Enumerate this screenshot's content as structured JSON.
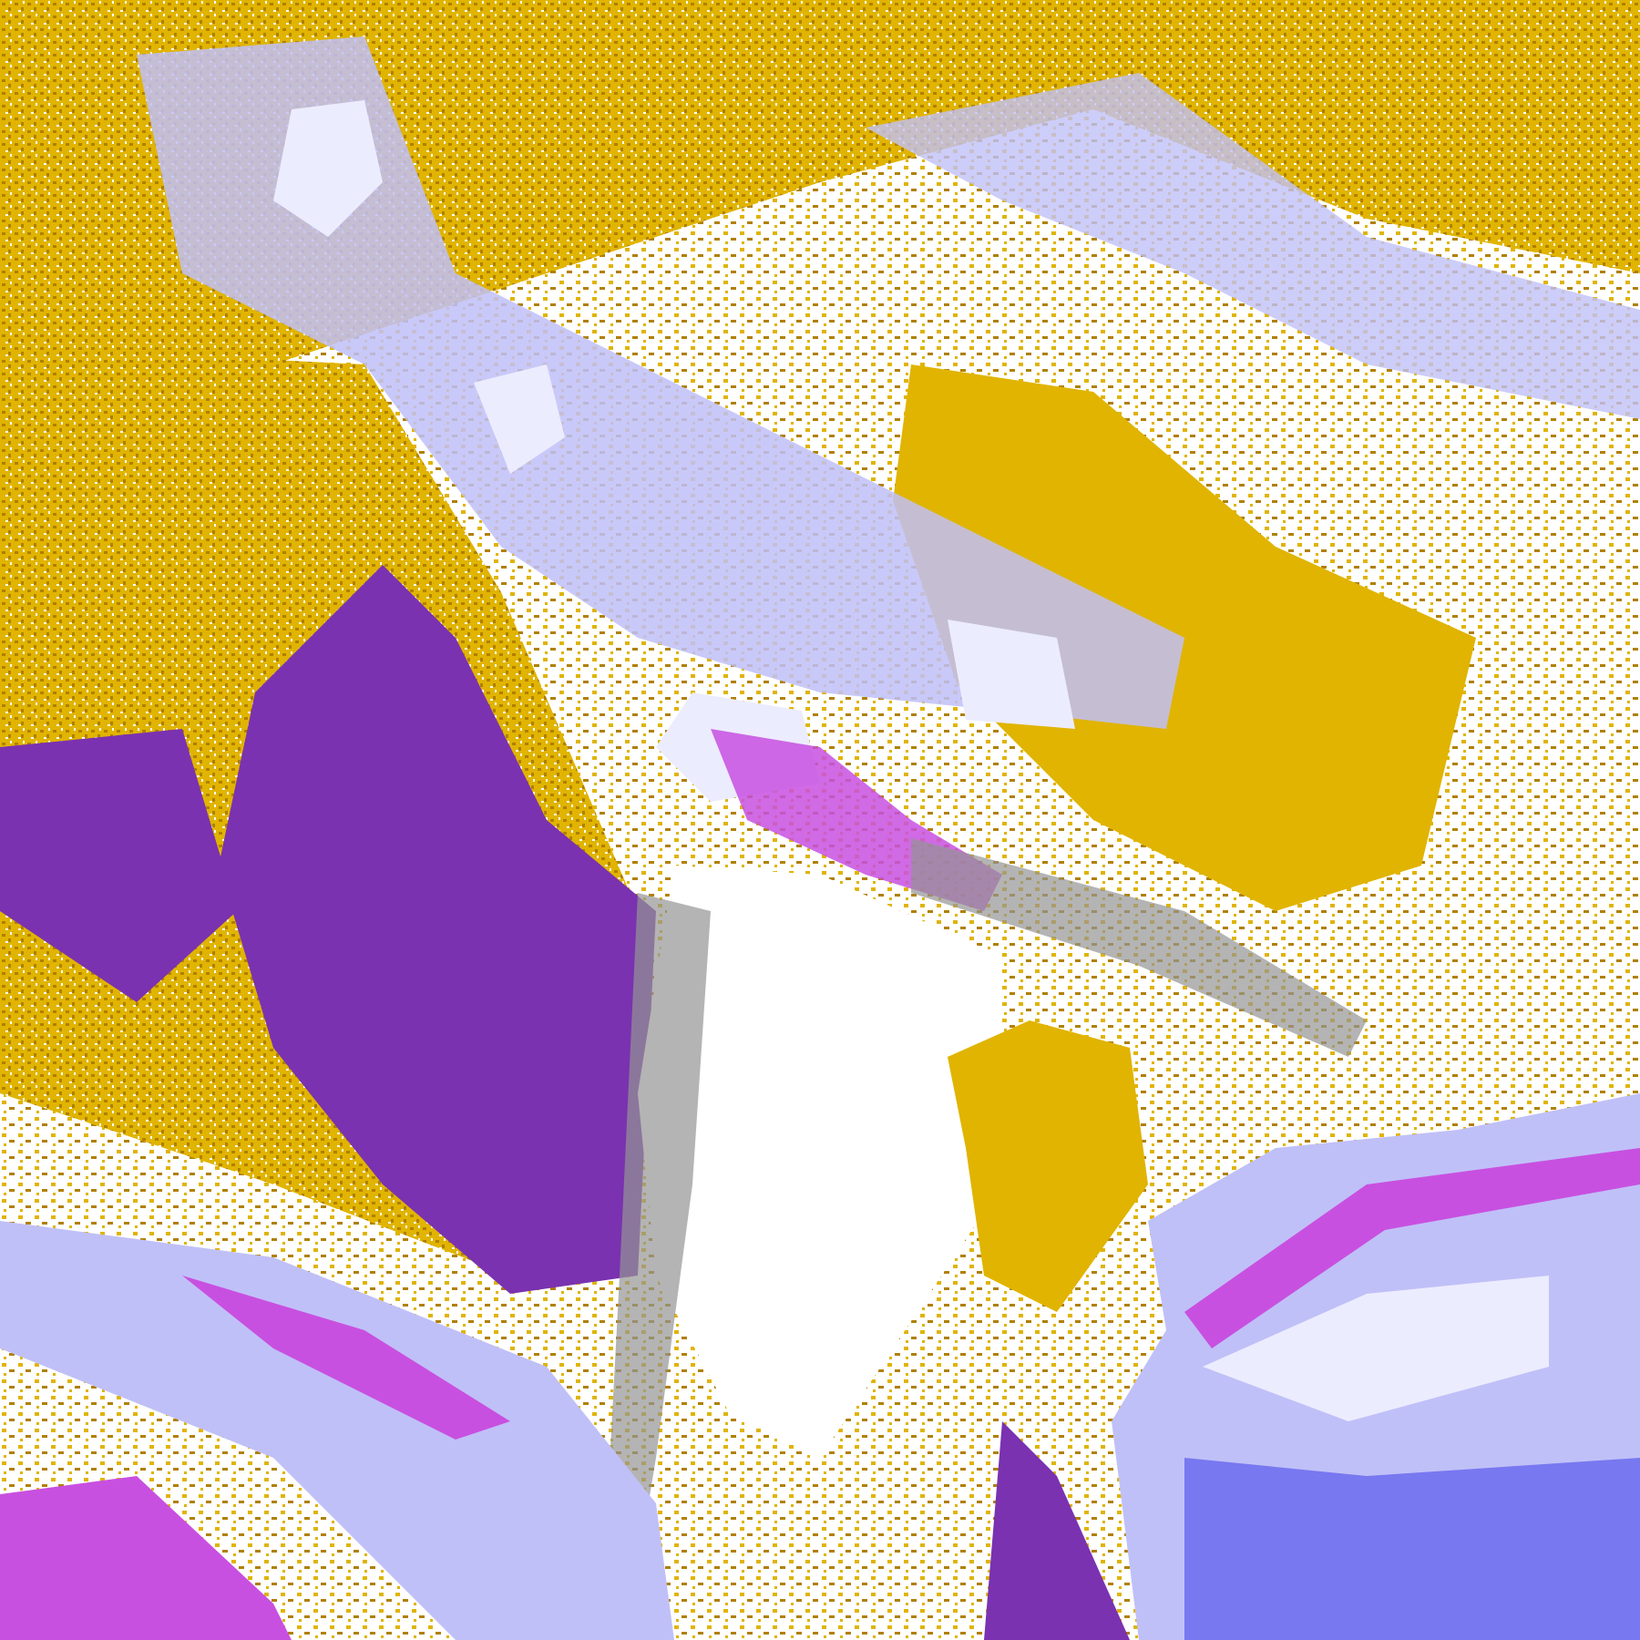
{
  "map": {
    "palette": {
      "clear": "#ffffff",
      "gold": "#e0b400",
      "dark_gold": "#b08000",
      "purple": "#7a32b0",
      "magenta": "#c850e0",
      "periwinkle": "#7878f0",
      "lavender": "#c0c0f8",
      "pale": "#ececff",
      "gray": "#949494"
    }
  }
}
